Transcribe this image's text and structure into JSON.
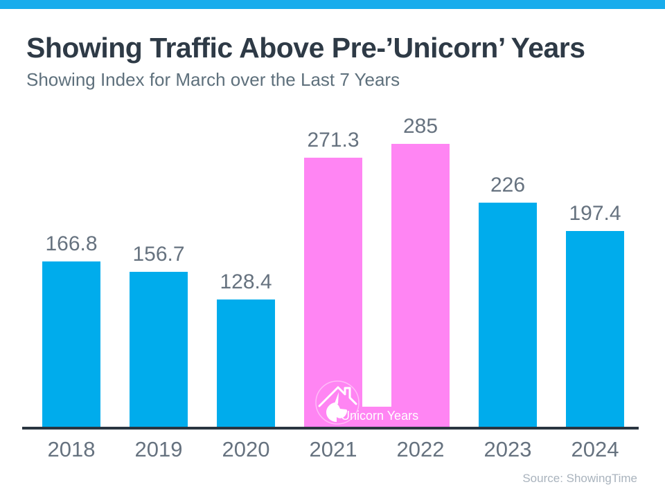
{
  "header": {
    "title": "Showing Traffic Above Pre-’Unicorn’ Years",
    "subtitle": "Showing Index for March over the Last 7 Years"
  },
  "footer": {
    "source": "Source: ShowingTime"
  },
  "chart_data": {
    "type": "bar",
    "title": "Showing Traffic Above Pre-’Unicorn’ Years",
    "subtitle": "Showing Index for March over the Last 7 Years",
    "categories": [
      "2018",
      "2019",
      "2020",
      "2021",
      "2022",
      "2023",
      "2024"
    ],
    "values": [
      166.8,
      156.7,
      128.4,
      271.3,
      285,
      226,
      197.4
    ],
    "value_labels": [
      "166.8",
      "156.7",
      "128.4",
      "271.3",
      "285",
      "226",
      "197.4"
    ],
    "highlight_indices": [
      3,
      4
    ],
    "highlight_label": "Unicorn Years",
    "highlight_icon": "unicorn-house-icon",
    "xlabel": "",
    "ylabel": "",
    "ylim": [
      0,
      285
    ],
    "grid": false,
    "legend_position": "inside-bottom-of-highlight-band",
    "colors": {
      "bar": "#00acec",
      "highlight_bar": "#ff85f3",
      "top_strip": "#18acec",
      "title": "#2e3a46",
      "subtitle": "#5e707c",
      "data_label": "#66727f",
      "axis_line": "#2a3540",
      "source": "#a9b3bd",
      "highlight_label_text": "#ffffff"
    }
  }
}
